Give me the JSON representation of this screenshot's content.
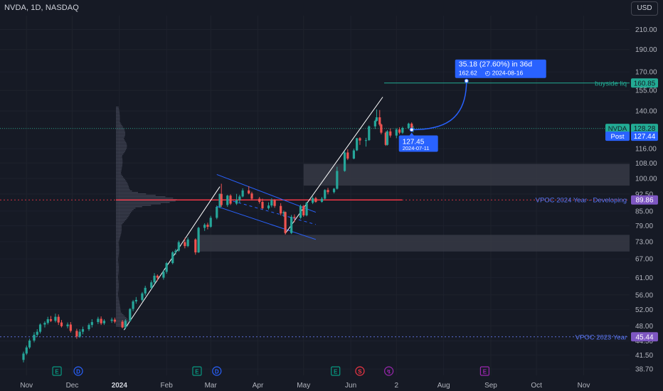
{
  "header": {
    "symbol_title": "NVDA, 1D, NASDAQ",
    "currency": "USD"
  },
  "colors": {
    "background": "#161a25",
    "up": "#26a69a",
    "down": "#ef5350",
    "channel": "#2962ff",
    "trendline": "#ffffff",
    "zone": "#363a45",
    "vpoc_2024": "#f23645",
    "vpoc_2023": "#5b6dd6",
    "buyside": "#22ab94",
    "projection": "#2962ff"
  },
  "chart_data": {
    "type": "candlestick",
    "symbol": "NVDA",
    "timeframe": "1D",
    "exchange": "NASDAQ",
    "y_scale": "log",
    "ylim": [
      37.5,
      225
    ],
    "y_ticks": [
      "210.00",
      "190.00",
      "170.00",
      "155.00",
      "140.00",
      "128.00",
      "116.00",
      "108.00",
      "100.00",
      "92.50",
      "85.00",
      "79.00",
      "73.00",
      "67.00",
      "61.00",
      "56.00",
      "52.00",
      "48.00",
      "44.50",
      "41.50",
      "38.70"
    ],
    "x_ticks": [
      "Nov",
      "Dec",
      "2024",
      "Feb",
      "Mar",
      "Apr",
      "May",
      "Jun",
      "2",
      "Aug",
      "Sep",
      "Oct",
      "Nov"
    ],
    "x_range": [
      "2023-10-30",
      "2024-11-08"
    ],
    "price_levels": [
      {
        "id": "buyside",
        "label": "buyside liq",
        "value": "160.85",
        "price": 160.85
      },
      {
        "id": "nvda",
        "label": "NVDA",
        "value": "128.28",
        "price": 128.28
      },
      {
        "id": "post",
        "label": "Post",
        "value": "127.44",
        "price": 127.44
      },
      {
        "id": "vpoc2024",
        "label": "VPOC 2024 Year - Developing",
        "value": "89.86",
        "price": 89.86
      },
      {
        "id": "vpoc2023",
        "label": "VPOC 2023 Year",
        "value": "45.44",
        "price": 45.44
      }
    ],
    "zones": [
      {
        "from": "2024-05-01",
        "to": "2024-11-08",
        "low": 96.5,
        "high": 107.5
      },
      {
        "from": "2024-02-22",
        "to": "2024-11-08",
        "low": 69.5,
        "high": 75.5
      }
    ],
    "projection": {
      "label": "35.18 (27.60%) in 36d",
      "sublabel": "162.62",
      "date": "2024-08-16",
      "from_date": "2024-07-11",
      "from_price": 127.45,
      "to_price": 162.62
    },
    "point_marker": {
      "label": "127.45",
      "date": "2024-07-11",
      "price": 127.45
    },
    "event_markers": [
      {
        "type": "E",
        "date": "2023-11-21"
      },
      {
        "type": "D",
        "date": "2023-12-05"
      },
      {
        "type": "E",
        "date": "2024-02-21"
      },
      {
        "type": "D",
        "date": "2024-03-05"
      },
      {
        "type": "E",
        "date": "2024-05-22"
      },
      {
        "type": "S",
        "date": "2024-06-07"
      },
      {
        "type": "F",
        "date": "2024-06-26"
      },
      {
        "type": "E",
        "date": "2024-08-28"
      }
    ],
    "candles": [
      [
        "2023-10-30",
        40.5,
        42.2,
        40.0,
        41.8
      ],
      [
        "2023-11-01",
        41.8,
        43.5,
        41.5,
        43.1
      ],
      [
        "2023-11-03",
        43.1,
        45.0,
        42.8,
        44.6
      ],
      [
        "2023-11-06",
        44.6,
        46.5,
        44.2,
        45.9
      ],
      [
        "2023-11-08",
        45.9,
        47.2,
        45.4,
        46.6
      ],
      [
        "2023-11-10",
        46.6,
        48.6,
        46.2,
        48.3
      ],
      [
        "2023-11-13",
        48.3,
        49.1,
        47.6,
        48.7
      ],
      [
        "2023-11-15",
        48.7,
        50.2,
        48.3,
        49.6
      ],
      [
        "2023-11-17",
        49.6,
        50.4,
        48.9,
        49.2
      ],
      [
        "2023-11-20",
        49.2,
        51.0,
        48.8,
        50.2
      ],
      [
        "2023-11-22",
        50.2,
        50.8,
        48.2,
        48.8
      ],
      [
        "2023-11-24",
        48.8,
        49.4,
        47.6,
        47.9
      ],
      [
        "2023-11-28",
        47.9,
        48.8,
        47.4,
        48.3
      ],
      [
        "2023-11-30",
        48.3,
        48.9,
        46.4,
        46.8
      ],
      [
        "2023-12-04",
        46.8,
        47.3,
        45.0,
        45.5
      ],
      [
        "2023-12-06",
        45.5,
        47.2,
        45.2,
        46.6
      ],
      [
        "2023-12-08",
        46.6,
        47.8,
        46.0,
        47.2
      ],
      [
        "2023-12-12",
        47.2,
        48.6,
        46.8,
        48.2
      ],
      [
        "2023-12-14",
        48.2,
        49.6,
        47.6,
        48.9
      ],
      [
        "2023-12-18",
        48.9,
        50.2,
        48.4,
        49.7
      ],
      [
        "2023-12-20",
        49.7,
        50.3,
        48.2,
        48.6
      ],
      [
        "2023-12-22",
        48.6,
        49.6,
        48.2,
        49.2
      ],
      [
        "2023-12-27",
        49.2,
        50.0,
        48.7,
        49.5
      ],
      [
        "2023-12-29",
        49.5,
        50.0,
        48.6,
        49.0
      ],
      [
        "2024-01-03",
        49.0,
        49.4,
        47.4,
        47.6
      ],
      [
        "2024-01-05",
        47.6,
        49.6,
        47.2,
        49.2
      ],
      [
        "2024-01-08",
        49.2,
        52.4,
        49.0,
        52.2
      ],
      [
        "2024-01-10",
        52.2,
        54.6,
        51.6,
        54.2
      ],
      [
        "2024-01-12",
        54.2,
        55.4,
        53.6,
        54.6
      ],
      [
        "2024-01-16",
        54.6,
        56.8,
        54.2,
        56.4
      ],
      [
        "2024-01-18",
        56.4,
        58.6,
        55.8,
        58.0
      ],
      [
        "2024-01-22",
        58.0,
        60.2,
        57.6,
        59.6
      ],
      [
        "2024-01-24",
        59.6,
        62.4,
        59.0,
        61.6
      ],
      [
        "2024-01-26",
        61.6,
        62.0,
        60.0,
        61.0
      ],
      [
        "2024-01-30",
        61.0,
        63.4,
        60.4,
        62.8
      ],
      [
        "2024-02-01",
        62.8,
        66.0,
        62.2,
        65.6
      ],
      [
        "2024-02-05",
        65.6,
        69.6,
        65.2,
        69.2
      ],
      [
        "2024-02-07",
        69.2,
        70.4,
        68.4,
        69.8
      ],
      [
        "2024-02-09",
        69.8,
        73.4,
        69.4,
        72.8
      ],
      [
        "2024-02-13",
        72.8,
        74.4,
        70.6,
        71.4
      ],
      [
        "2024-02-15",
        71.4,
        74.6,
        71.0,
        73.8
      ],
      [
        "2024-02-20",
        73.8,
        74.2,
        68.4,
        69.2
      ],
      [
        "2024-02-22",
        69.2,
        78.6,
        69.0,
        78.2
      ],
      [
        "2024-02-26",
        78.2,
        80.0,
        77.0,
        79.4
      ],
      [
        "2024-02-28",
        79.4,
        80.2,
        77.6,
        78.6
      ],
      [
        "2024-03-01",
        78.6,
        83.0,
        78.2,
        82.2
      ],
      [
        "2024-03-05",
        82.2,
        87.4,
        81.6,
        86.8
      ],
      [
        "2024-03-07",
        86.8,
        92.8,
        86.2,
        92.6
      ],
      [
        "2024-03-08",
        92.6,
        97.4,
        86.8,
        87.6
      ],
      [
        "2024-03-12",
        87.6,
        92.2,
        86.8,
        91.8
      ],
      [
        "2024-03-14",
        91.8,
        92.4,
        87.6,
        88.2
      ],
      [
        "2024-03-18",
        88.2,
        92.6,
        87.6,
        89.8
      ],
      [
        "2024-03-20",
        89.8,
        92.2,
        88.6,
        91.4
      ],
      [
        "2024-03-22",
        91.4,
        95.2,
        91.0,
        94.2
      ],
      [
        "2024-03-26",
        94.2,
        96.2,
        92.4,
        92.8
      ],
      [
        "2024-03-28",
        92.8,
        93.6,
        89.6,
        90.4
      ],
      [
        "2024-04-02",
        90.4,
        91.2,
        88.2,
        89.0
      ],
      [
        "2024-04-04",
        89.0,
        90.4,
        85.8,
        86.2
      ],
      [
        "2024-04-08",
        86.2,
        88.8,
        85.6,
        87.4
      ],
      [
        "2024-04-10",
        87.4,
        90.6,
        86.6,
        89.8
      ],
      [
        "2024-04-12",
        89.8,
        90.2,
        86.4,
        87.2
      ],
      [
        "2024-04-16",
        87.2,
        88.4,
        83.2,
        84.0
      ],
      [
        "2024-04-18",
        84.0,
        85.2,
        82.6,
        84.6
      ],
      [
        "2024-04-19",
        84.6,
        84.8,
        75.6,
        76.2
      ],
      [
        "2024-04-23",
        76.2,
        83.4,
        75.8,
        82.6
      ],
      [
        "2024-04-25",
        82.6,
        83.6,
        80.4,
        82.2
      ],
      [
        "2024-04-29",
        82.2,
        87.8,
        81.8,
        87.2
      ],
      [
        "2024-05-01",
        87.2,
        87.6,
        82.6,
        83.2
      ],
      [
        "2024-05-03",
        83.2,
        89.0,
        82.8,
        88.6
      ],
      [
        "2024-05-07",
        88.6,
        91.4,
        88.0,
        90.6
      ],
      [
        "2024-05-09",
        90.6,
        91.2,
        88.6,
        89.0
      ],
      [
        "2024-05-13",
        89.0,
        91.2,
        88.6,
        90.4
      ],
      [
        "2024-05-15",
        90.4,
        94.8,
        90.0,
        94.4
      ],
      [
        "2024-05-17",
        94.4,
        95.4,
        92.4,
        93.4
      ],
      [
        "2024-05-21",
        93.4,
        95.4,
        92.8,
        95.0
      ],
      [
        "2024-05-23",
        95.0,
        106.0,
        94.6,
        103.8
      ],
      [
        "2024-05-28",
        103.8,
        114.8,
        103.4,
        113.8
      ],
      [
        "2024-05-30",
        113.8,
        115.6,
        109.6,
        110.4
      ],
      [
        "2024-06-03",
        110.4,
        116.0,
        110.0,
        115.0
      ],
      [
        "2024-06-05",
        115.0,
        122.4,
        114.6,
        122.2
      ],
      [
        "2024-06-07",
        122.2,
        122.8,
        118.2,
        120.8
      ],
      [
        "2024-06-11",
        120.8,
        122.4,
        117.2,
        121.0
      ],
      [
        "2024-06-13",
        121.0,
        130.2,
        120.6,
        129.6
      ],
      [
        "2024-06-17",
        129.6,
        134.0,
        128.0,
        133.2
      ],
      [
        "2024-06-18",
        133.2,
        141.0,
        132.8,
        135.6
      ],
      [
        "2024-06-20",
        135.6,
        140.6,
        129.8,
        130.8
      ],
      [
        "2024-06-21",
        130.8,
        131.4,
        124.6,
        125.6
      ],
      [
        "2024-06-24",
        125.6,
        126.4,
        117.6,
        118.2
      ],
      [
        "2024-06-25",
        118.2,
        127.2,
        117.8,
        126.4
      ],
      [
        "2024-06-27",
        126.4,
        128.2,
        122.6,
        123.8
      ],
      [
        "2024-07-01",
        123.8,
        128.4,
        122.2,
        127.6
      ],
      [
        "2024-07-03",
        127.6,
        129.0,
        124.6,
        125.6
      ],
      [
        "2024-07-05",
        125.6,
        129.4,
        124.8,
        128.6
      ],
      [
        "2024-07-09",
        128.6,
        132.0,
        127.8,
        131.4
      ],
      [
        "2024-07-11",
        131.4,
        132.2,
        126.8,
        127.4
      ],
      [
        "2024-07-12",
        127.4,
        130.0,
        125.8,
        128.3
      ]
    ]
  }
}
